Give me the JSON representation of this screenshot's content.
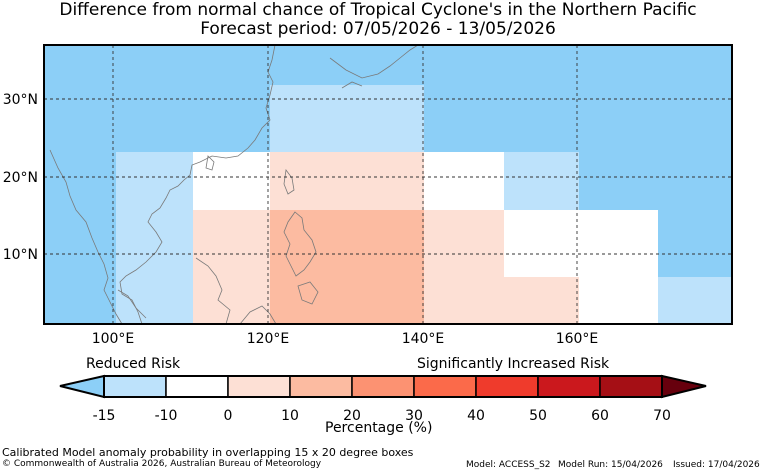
{
  "title": {
    "line1": "Difference from normal chance of Tropical Cyclone's in the Northern Pacific",
    "line2": "Forecast period: 07/05/2026 - 13/05/2026"
  },
  "map": {
    "lat_labels": [
      "30°N",
      "20°N",
      "10°N"
    ],
    "lon_labels": [
      "100°E",
      "120°E",
      "140°E",
      "160°E"
    ],
    "colors": {
      "neg15": "#8ccff7",
      "neg10": "#bde2fb",
      "zero": "#ffffff",
      "pos0": "#fde0d5",
      "pos10": "#fcbba1",
      "coast": "#7a7a7a",
      "grid": "#333333"
    }
  },
  "colorbar": {
    "reduced_label": "Reduced Risk",
    "increased_label": "Significantly Increased Risk",
    "ticks": [
      "-15",
      "-10",
      "0",
      "10",
      "20",
      "30",
      "40",
      "50",
      "60",
      "70"
    ],
    "colors": [
      "#bde2fb",
      "#ffffff",
      "#fde0d5",
      "#fcbba1",
      "#fc9272",
      "#fb6a4a",
      "#ef3b2c",
      "#cb181d",
      "#a50f15"
    ],
    "low_extend_color": "#8ccff7",
    "high_extend_color": "#67000d",
    "axis_label": "Percentage (%)"
  },
  "footer": {
    "note": "Calibrated Model anomaly probability in overlapping 15 x 20 degree boxes",
    "copyright": "© Commonwealth of Australia 2026, Australian Bureau of Meteorology",
    "model": "Model: ACCESS_S2",
    "run": "Model Run: 15/04/2026",
    "issued": "Issued: 17/04/2026"
  }
}
